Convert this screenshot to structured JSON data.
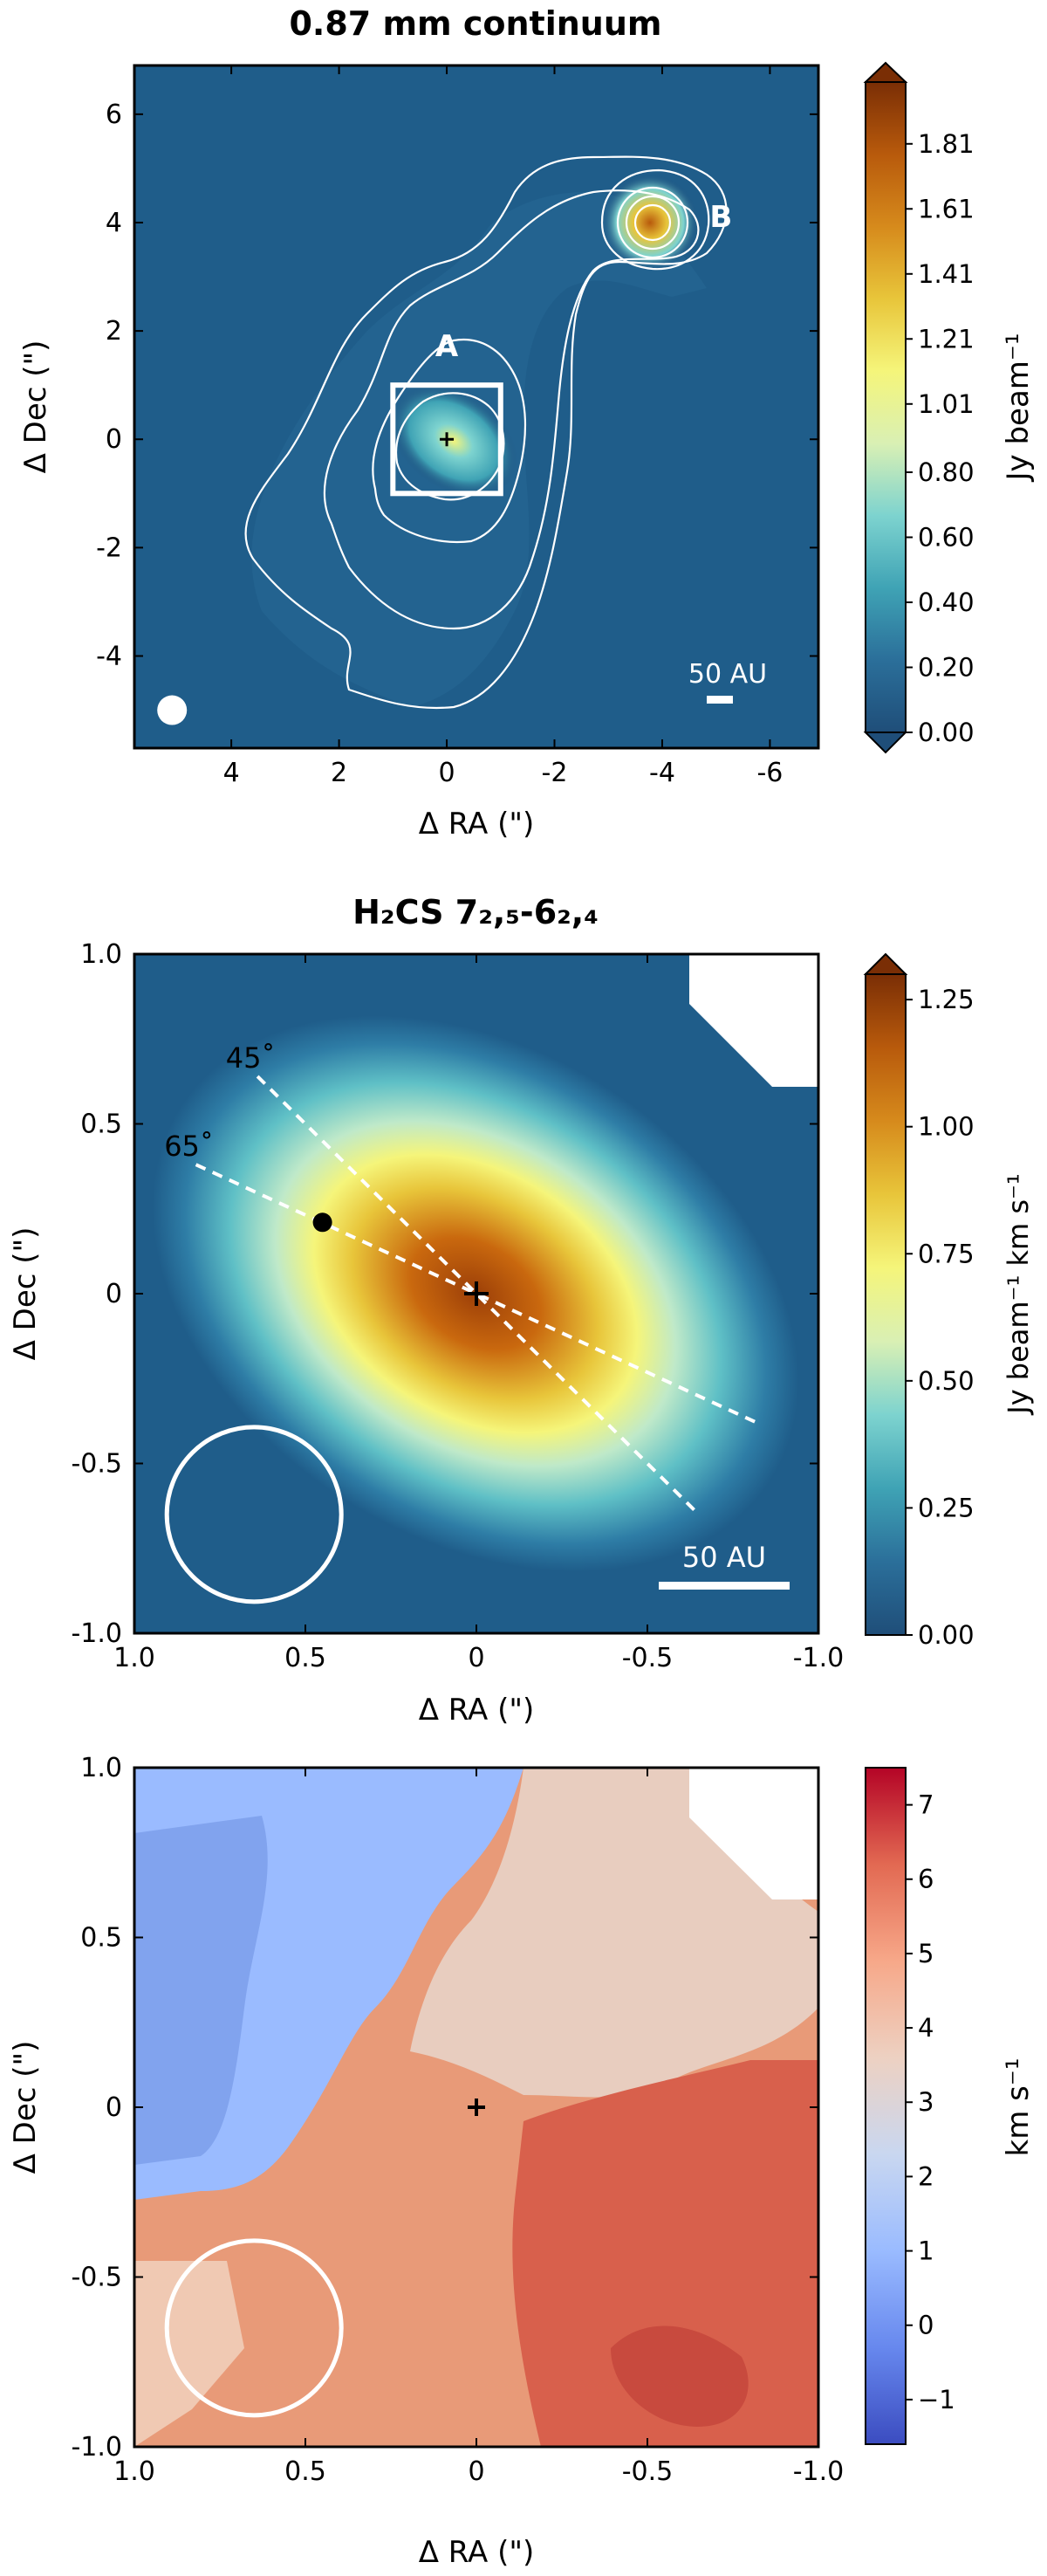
{
  "colors": {
    "background": "#ffffff",
    "axis": "#000000",
    "overlay": "#ffffff"
  },
  "chart_data": [
    {
      "type": "heatmap",
      "title": "0.87 mm continuum",
      "xlabel": "Δ RA (\")",
      "ylabel": "Δ Dec (\")",
      "xlim": [
        5.8,
        -6.9
      ],
      "ylim": [
        -5.7,
        6.9
      ],
      "x_ticks": [
        4,
        2,
        0,
        -2,
        -4,
        -6
      ],
      "x_tick_labels": [
        "4",
        "2",
        "0",
        "-2",
        "-4",
        "-6"
      ],
      "y_ticks": [
        -4,
        -2,
        0,
        2,
        4,
        6
      ],
      "y_tick_labels": [
        "-4",
        "-2",
        "0",
        "2",
        "4",
        "6"
      ],
      "colorbar": {
        "label": "Jy beam⁻¹",
        "range": [
          0.0,
          2.0
        ],
        "ticks": [
          0.0,
          0.2,
          0.4,
          0.6,
          0.8,
          1.01,
          1.21,
          1.41,
          1.61,
          1.81
        ],
        "tick_labels": [
          "0.00",
          "0.20",
          "0.40",
          "0.60",
          "0.80",
          "1.01",
          "1.21",
          "1.41",
          "1.61",
          "1.81"
        ],
        "extend": "both",
        "colormap": [
          "#1f4e79",
          "#2b6f9a",
          "#3fa3b5",
          "#7dd3cf",
          "#d9f0b4",
          "#f5f57a",
          "#e8c53a",
          "#d68a1c",
          "#b85a0c",
          "#7a2e05"
        ]
      },
      "sources": [
        {
          "label": "A",
          "x": 0.0,
          "y": 0.0
        },
        {
          "label": "B",
          "x": -3.6,
          "y": 4.0
        }
      ],
      "box": {
        "x0": -1.0,
        "x1": 1.0,
        "y0": -1.0,
        "y1": 1.0
      },
      "beam": {
        "x": 5.1,
        "y": -5.0
      },
      "scalebar_label": "50 AU"
    },
    {
      "type": "heatmap",
      "title": "H₂CS 7₂,₅-6₂,₄",
      "xlabel": "Δ RA (\")",
      "ylabel": "Δ Dec (\")",
      "xlim": [
        1.0,
        -1.0
      ],
      "ylim": [
        -1.0,
        1.0
      ],
      "x_ticks": [
        1.0,
        0.5,
        0,
        -0.5,
        -1.0
      ],
      "x_tick_labels": [
        "1.0",
        "0.5",
        "0",
        "-0.5",
        "-1.0"
      ],
      "y_ticks": [
        -1.0,
        -0.5,
        0,
        0.5,
        1.0
      ],
      "y_tick_labels": [
        "-1.0",
        "-0.5",
        "0",
        "0.5",
        "1.0"
      ],
      "colorbar": {
        "label": "Jy beam⁻¹ km s⁻¹",
        "range": [
          0.0,
          1.3
        ],
        "ticks": [
          0.0,
          0.25,
          0.5,
          0.75,
          1.0,
          1.25
        ],
        "tick_labels": [
          "0.00",
          "0.25",
          "0.50",
          "0.75",
          "1.00",
          "1.25"
        ],
        "extend": "max",
        "colormap": [
          "#1f4e79",
          "#2b6f9a",
          "#3fa3b5",
          "#7dd3cf",
          "#d9f0b4",
          "#f5f57a",
          "#e8c53a",
          "#d68a1c",
          "#b85a0c",
          "#7a2e05"
        ]
      },
      "cut_lines": [
        {
          "label": "45˚",
          "x0": 0.64,
          "y0": 0.64,
          "x1": -0.64,
          "y1": -0.64
        },
        {
          "label": "65˚",
          "x0": 0.82,
          "y0": 0.38,
          "x1": -0.82,
          "y1": -0.38
        }
      ],
      "marker_point": {
        "x": 0.45,
        "y": 0.21
      },
      "center": {
        "x": 0.0,
        "y": 0.0
      },
      "beam": {
        "x": 0.65,
        "y": -0.65
      },
      "scalebar_label": "50 AU"
    },
    {
      "type": "heatmap",
      "title": "",
      "xlabel": "Δ RA (\")",
      "ylabel": "Δ Dec (\")",
      "xlim": [
        1.0,
        -1.0
      ],
      "ylim": [
        -1.0,
        1.0
      ],
      "x_ticks": [
        1.0,
        0.5,
        0,
        -0.5,
        -1.0
      ],
      "x_tick_labels": [
        "1.0",
        "0.5",
        "0",
        "-0.5",
        "-1.0"
      ],
      "y_ticks": [
        -1.0,
        -0.5,
        0,
        0.5,
        1.0
      ],
      "y_tick_labels": [
        "-1.0",
        "-0.5",
        "0",
        "0.5",
        "1.0"
      ],
      "colorbar": {
        "label": "km s⁻¹",
        "range": [
          -1.6,
          7.5
        ],
        "ticks": [
          -1,
          0,
          1,
          2,
          3,
          4,
          5,
          6,
          7
        ],
        "tick_labels": [
          "−1",
          "0",
          "1",
          "2",
          "3",
          "4",
          "5",
          "6",
          "7"
        ],
        "extend": "min",
        "colormap": [
          "#3b4cc0",
          "#6788ee",
          "#9abbff",
          "#c9d7f0",
          "#edd1c2",
          "#f7a889",
          "#e26952",
          "#b40426"
        ]
      },
      "center": {
        "x": 0.0,
        "y": 0.0
      },
      "beam": {
        "x": 0.65,
        "y": -0.65
      }
    }
  ]
}
